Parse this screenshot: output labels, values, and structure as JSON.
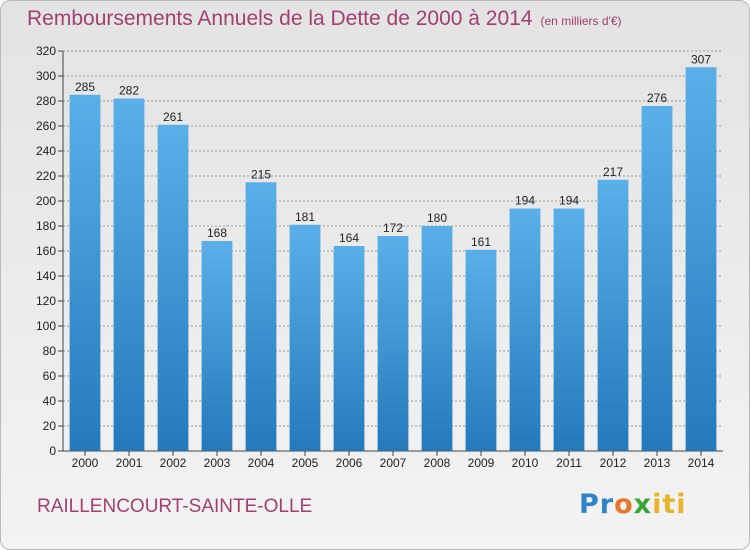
{
  "chart_data": {
    "type": "bar",
    "title": "Remboursements Annuels de la Dette de 2000 à 2014",
    "subtitle": "(en milliers d'€)",
    "categories": [
      "2000",
      "2001",
      "2002",
      "2003",
      "2004",
      "2005",
      "2006",
      "2007",
      "2008",
      "2009",
      "2010",
      "2011",
      "2012",
      "2013",
      "2014"
    ],
    "values": [
      285,
      282,
      261,
      168,
      215,
      181,
      164,
      172,
      180,
      161,
      194,
      194,
      217,
      276,
      307
    ],
    "ylim": [
      0,
      320
    ],
    "yticks": [
      0,
      20,
      40,
      60,
      80,
      100,
      120,
      140,
      160,
      180,
      200,
      220,
      240,
      260,
      280,
      300,
      320
    ],
    "grid": true,
    "bar_color": "#3e97db"
  },
  "footer": {
    "commune": "RAILLENCOURT-SAINTE-OLLE",
    "logo_parts": [
      "Pr",
      "o",
      "x",
      "iti"
    ]
  }
}
